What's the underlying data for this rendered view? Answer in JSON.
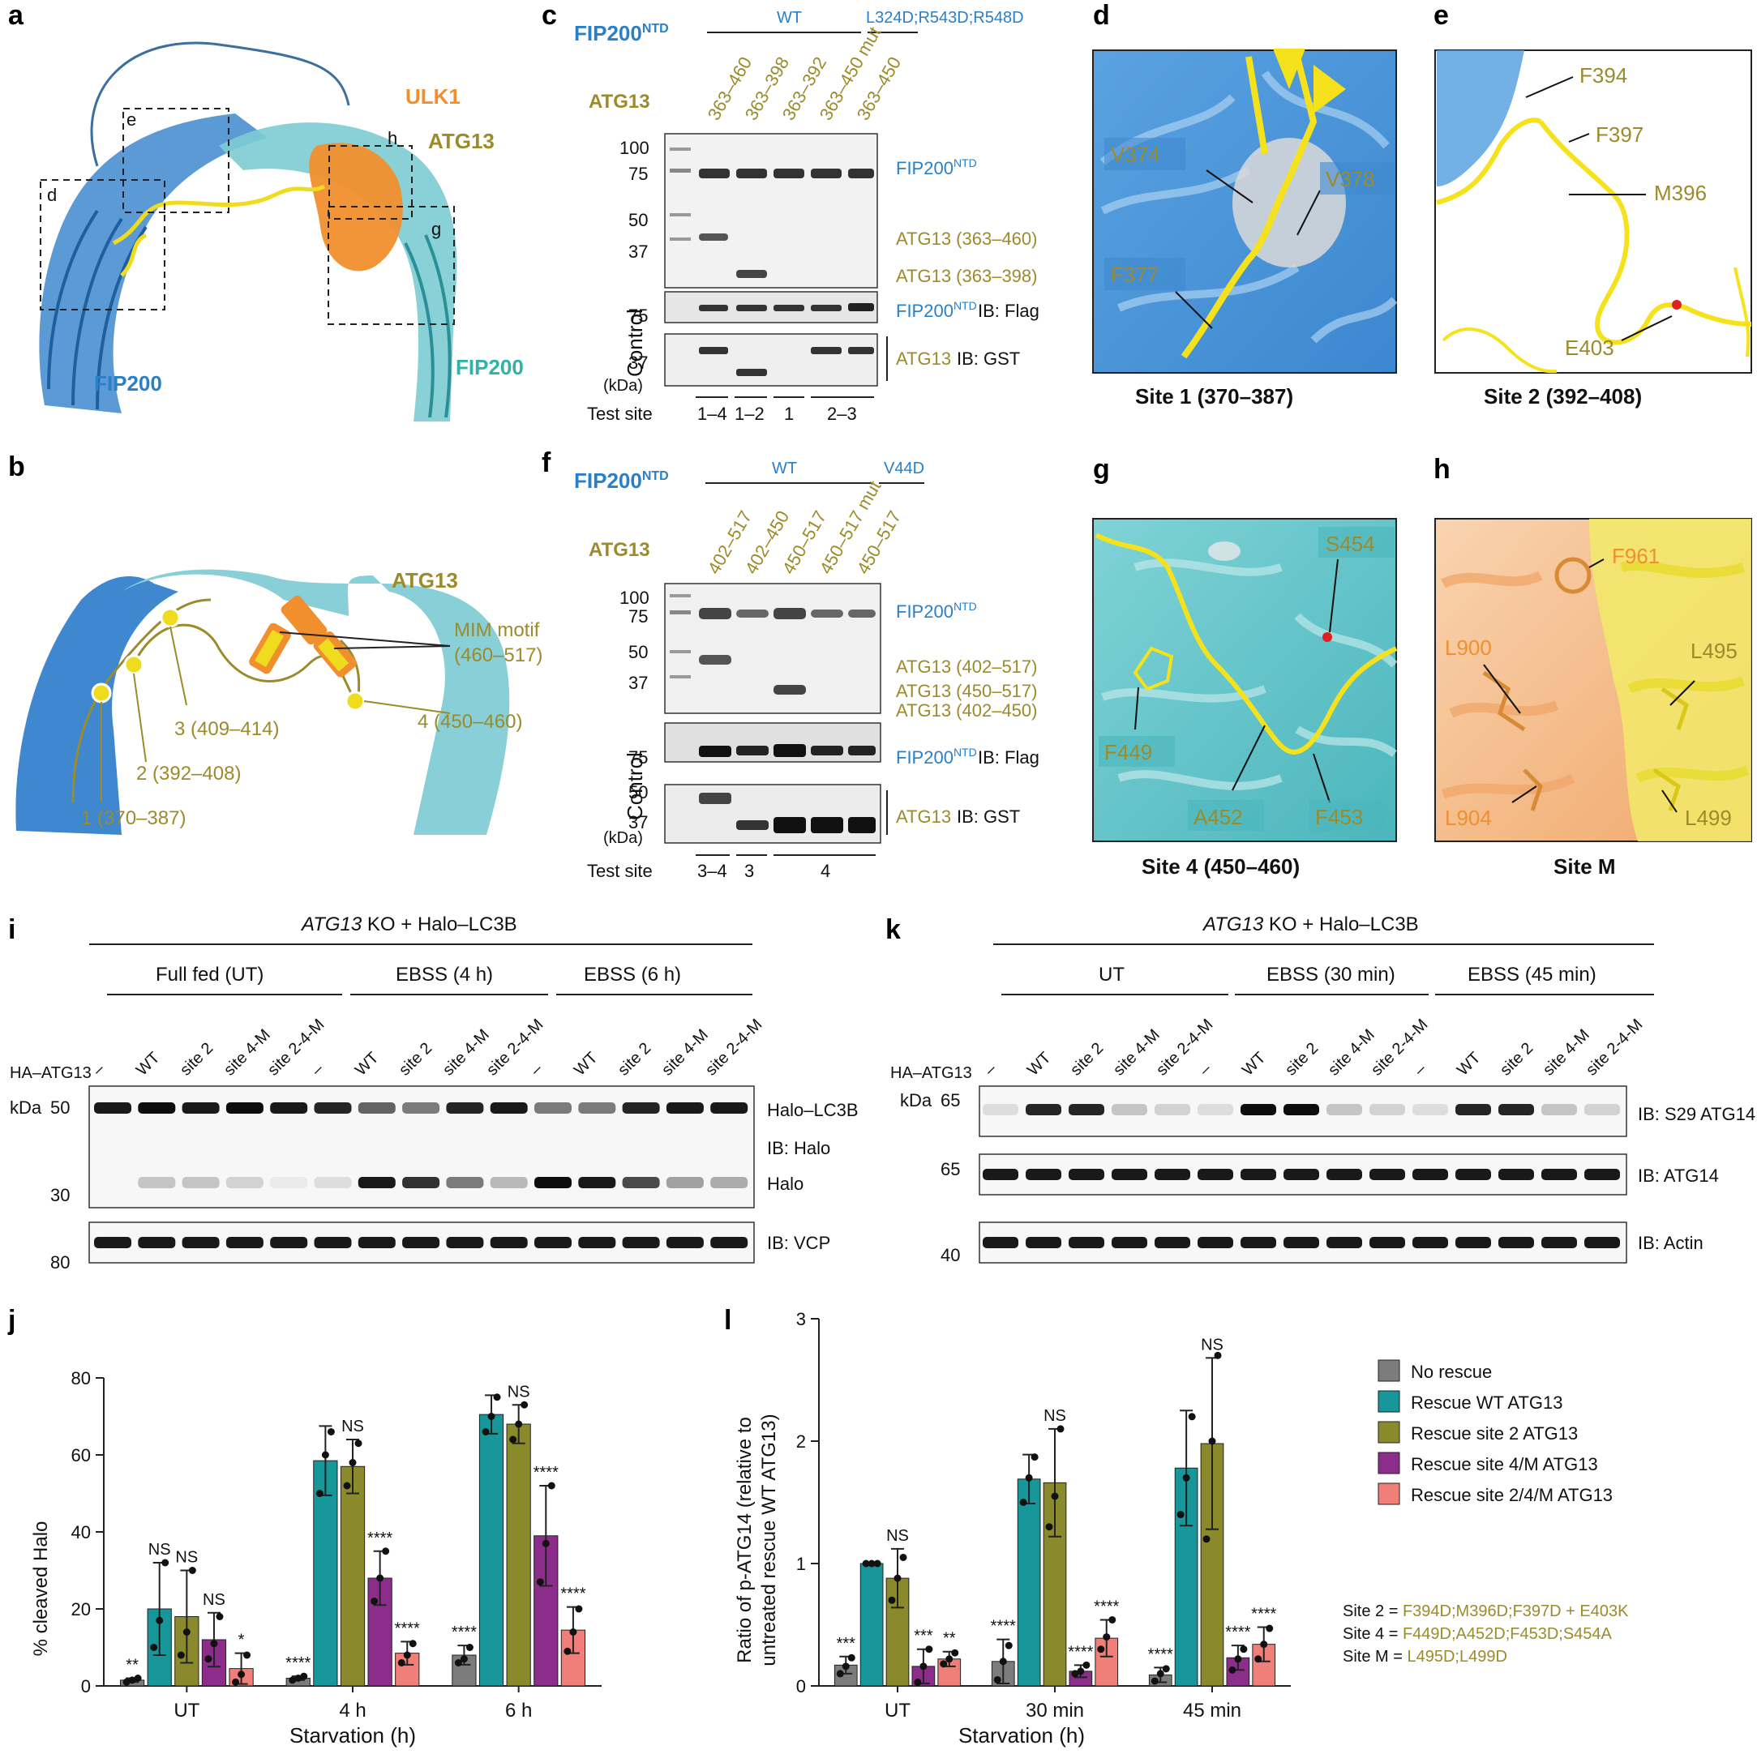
{
  "panels": {
    "a": "a",
    "b": "b",
    "c": "c",
    "d": "d",
    "e": "e",
    "f": "f",
    "g": "g",
    "h": "h",
    "i": "i",
    "j": "j",
    "k": "k",
    "l": "l"
  },
  "panel_a": {
    "labels": {
      "ulk1": "ULK1",
      "atg13": "ATG13",
      "fip200_left": "FIP200",
      "fip200_right": "FIP200"
    },
    "boxes": {
      "d": "d",
      "e": "e",
      "g": "g",
      "h": "h"
    }
  },
  "panel_b": {
    "title": "ATG13",
    "mim": "MIM motif",
    "mim_range": "(460–517)",
    "sites": [
      "1 (370–387)",
      "2 (392–408)",
      "3 (409–414)",
      "4 (450–460)"
    ]
  },
  "panel_c": {
    "fip_label": "FIP200",
    "fip_sup": "NTD",
    "wt": "WT",
    "mut": "L324D;R543D;R548D",
    "atg_label": "ATG13",
    "lanes": [
      "363–460",
      "363–398",
      "363–392",
      "363–450 mut",
      "363–450"
    ],
    "mw": [
      "100",
      "75",
      "50",
      "37"
    ],
    "ctrl_mw": [
      "75",
      "37"
    ],
    "bands": [
      "FIP200",
      "ATG13 (363–460)",
      "ATG13 (363–398)"
    ],
    "ctrl": [
      "FIP200",
      "IB: Flag",
      "ATG13",
      "IB: GST"
    ],
    "control": "Control",
    "kda": "(kDa)",
    "test_site": "Test site",
    "sites": [
      "1–4",
      "1–2",
      "1",
      "2–3"
    ]
  },
  "panel_d": {
    "residues": [
      "V374",
      "V378",
      "F377"
    ],
    "caption": "Site 1 (370–387)"
  },
  "panel_e": {
    "residues": [
      "F394",
      "F397",
      "M396",
      "E403"
    ],
    "caption": "Site 2 (392–408)"
  },
  "panel_f": {
    "fip_label": "FIP200",
    "fip_sup": "NTD",
    "wt": "WT",
    "mut": "V44D",
    "atg_label": "ATG13",
    "lanes": [
      "402–517",
      "402–450",
      "450–517",
      "450–517 mut",
      "450–517"
    ],
    "mw": [
      "100",
      "75",
      "50",
      "37"
    ],
    "ctrl_mw": [
      "75",
      "50",
      "37"
    ],
    "bands": [
      "FIP200",
      "ATG13 (402–517)",
      "ATG13 (450–517)",
      "ATG13 (402–450)"
    ],
    "ctrl": [
      "FIP200",
      "IB: Flag",
      "ATG13",
      "IB: GST"
    ],
    "control": "Control",
    "kda": "(kDa)",
    "test_site": "Test site",
    "sites": [
      "3–4",
      "3",
      "4"
    ]
  },
  "panel_g": {
    "residues": [
      "S454",
      "F449",
      "A452",
      "F453"
    ],
    "caption": "Site 4 (450–460)"
  },
  "panel_h": {
    "residues": [
      "F961",
      "L900",
      "L495",
      "L904",
      "L499"
    ],
    "caption": "Site M"
  },
  "panel_i": {
    "header_italic": "ATG13",
    "header_rest": " KO + Halo–LC3B",
    "groups": [
      "Full fed (UT)",
      "EBSS (4 h)",
      "EBSS (6 h)"
    ],
    "ha": "HA–ATG13",
    "lanes": [
      "–",
      "WT",
      "site 2",
      "site 4-M",
      "site 2-4-M",
      "–",
      "WT",
      "site 2",
      "site 4-M",
      "site 2-4-M",
      "–",
      "WT",
      "site 2",
      "site 4-M",
      "site 2-4-M"
    ],
    "kda": "kDa",
    "mw": [
      "50",
      "30",
      "80"
    ],
    "bands": [
      "Halo–LC3B",
      "IB: Halo",
      "Halo",
      "IB: VCP"
    ]
  },
  "panel_k": {
    "header_italic": "ATG13",
    "header_rest": " KO + Halo–LC3B",
    "groups": [
      "UT",
      "EBSS (30 min)",
      "EBSS (45 min)"
    ],
    "ha": "HA–ATG13",
    "lanes": [
      "–",
      "WT",
      "site 2",
      "site 4-M",
      "site 2-4-M",
      "–",
      "WT",
      "site 2",
      "site 4-M",
      "site 2-4-M",
      "–",
      "WT",
      "site 2",
      "site 4-M",
      "site 2-4-M"
    ],
    "kda": "kDa",
    "mw": [
      "65",
      "65",
      "40"
    ],
    "bands": [
      "IB: S29 ATG14",
      "IB: ATG14",
      "IB: Actin"
    ]
  },
  "chart_data": [
    {
      "type": "bar",
      "title": "",
      "ylabel": "% cleaved Halo",
      "xlabel": "Starvation (h)",
      "categories": [
        "UT",
        "4 h",
        "6 h"
      ],
      "ylim": [
        0,
        80
      ],
      "yticks": [
        "0",
        "20",
        "40",
        "60",
        "80"
      ],
      "series": [
        {
          "name": "No rescue",
          "values": [
            1.5,
            2.0,
            8.0
          ],
          "errors": [
            0.5,
            0.5,
            2.5
          ],
          "points": [
            [
              1,
              1.5,
              2
            ],
            [
              1.5,
              2,
              2.5
            ],
            [
              6,
              7,
              10
            ]
          ]
        },
        {
          "name": "Rescue WT ATG13",
          "values": [
            20,
            58.5,
            70.5
          ],
          "errors": [
            12,
            9,
            5
          ],
          "points": [
            [
              10,
              17,
              32
            ],
            [
              50,
              60,
              66
            ],
            [
              66,
              70,
              75
            ]
          ]
        },
        {
          "name": "Rescue site 2 ATG13",
          "values": [
            18,
            57,
            68
          ],
          "errors": [
            12,
            7,
            5
          ],
          "points": [
            [
              8,
              14,
              30
            ],
            [
              52,
              58,
              63
            ],
            [
              64,
              68,
              73
            ]
          ]
        },
        {
          "name": "Rescue site 4/M ATG13",
          "values": [
            12,
            28,
            39
          ],
          "errors": [
            7,
            7,
            13
          ],
          "points": [
            [
              7,
              11,
              18
            ],
            [
              22,
              28,
              35
            ],
            [
              27,
              37,
              52
            ]
          ]
        },
        {
          "name": "Rescue site 2/4/M ATG13",
          "values": [
            4.5,
            8.5,
            14.5
          ],
          "errors": [
            4,
            3,
            6
          ],
          "points": [
            [
              1,
              3,
              8
            ],
            [
              6,
              8,
              11
            ],
            [
              9,
              14,
              20
            ]
          ]
        }
      ],
      "annotations": [
        [
          "**",
          "NS",
          "NS",
          "NS",
          "*"
        ],
        [
          "****",
          "",
          "NS",
          "****",
          "****"
        ],
        [
          "****",
          "",
          "NS",
          "****",
          "****"
        ]
      ]
    },
    {
      "type": "bar",
      "title": "",
      "ylabel": "Ratio of p-ATG14 (relative to untreated rescue WT ATG13)",
      "xlabel": "Starvation (h)",
      "categories": [
        "UT",
        "30 min",
        "45 min"
      ],
      "ylim": [
        0,
        3
      ],
      "yticks": [
        "0",
        "1",
        "2",
        "3"
      ],
      "series": [
        {
          "name": "No rescue",
          "values": [
            0.17,
            0.2,
            0.09
          ],
          "errors": [
            0.07,
            0.18,
            0.06
          ],
          "points": [
            [
              0.1,
              0.16,
              0.23
            ],
            [
              0.05,
              0.2,
              0.33
            ],
            [
              0.04,
              0.1,
              0.14
            ]
          ]
        },
        {
          "name": "Rescue WT ATG13",
          "values": [
            1.0,
            1.69,
            1.78
          ],
          "errors": [
            0.01,
            0.2,
            0.47
          ],
          "points": [
            [
              1,
              1,
              1
            ],
            [
              1.5,
              1.7,
              1.87
            ],
            [
              1.4,
              1.7,
              2.2
            ]
          ]
        },
        {
          "name": "Rescue site 2 ATG13",
          "values": [
            0.88,
            1.66,
            1.98
          ],
          "errors": [
            0.24,
            0.44,
            0.7
          ],
          "points": [
            [
              0.7,
              0.88,
              1.05
            ],
            [
              1.3,
              1.55,
              2.1
            ],
            [
              1.2,
              2.0,
              2.7
            ]
          ]
        },
        {
          "name": "Rescue site 4/M ATG13",
          "values": [
            0.16,
            0.12,
            0.23
          ],
          "errors": [
            0.14,
            0.05,
            0.1
          ],
          "points": [
            [
              0.03,
              0.16,
              0.3
            ],
            [
              0.1,
              0.12,
              0.17
            ],
            [
              0.13,
              0.22,
              0.3
            ]
          ]
        },
        {
          "name": "Rescue site 2/4/M ATG13",
          "values": [
            0.22,
            0.39,
            0.34
          ],
          "errors": [
            0.06,
            0.15,
            0.14
          ],
          "points": [
            [
              0.18,
              0.22,
              0.27
            ],
            [
              0.3,
              0.4,
              0.54
            ],
            [
              0.22,
              0.34,
              0.47
            ]
          ]
        }
      ],
      "annotations": [
        [
          "***",
          "",
          "NS",
          "***",
          "**"
        ],
        [
          "****",
          "",
          "NS",
          "****",
          "****"
        ],
        [
          "****",
          "",
          "NS",
          "****",
          "****"
        ]
      ]
    }
  ],
  "legend": [
    "No rescue",
    "Rescue WT ATG13",
    "Rescue site 2 ATG13",
    "Rescue site 4/M ATG13",
    "Rescue site 2/4/M ATG13"
  ],
  "colors": {
    "no_rescue": "#7c7c7c",
    "wt": "#17979a",
    "site2": "#8a8a2c",
    "site4m": "#8c2d8c",
    "site24m": "#f07f7a",
    "blue": "#2a7fc9",
    "olive": "#9c8b2b",
    "orange": "#f18f2e"
  },
  "site_defs": [
    {
      "name": "Site 2",
      "eq": " = ",
      "value": "F394D;M396D;F397D + E403K"
    },
    {
      "name": "Site 4",
      "eq": " = ",
      "value": "F449D;A452D;F453D;S454A"
    },
    {
      "name": "Site M",
      "eq": " = ",
      "value": "L495D;L499D"
    }
  ]
}
